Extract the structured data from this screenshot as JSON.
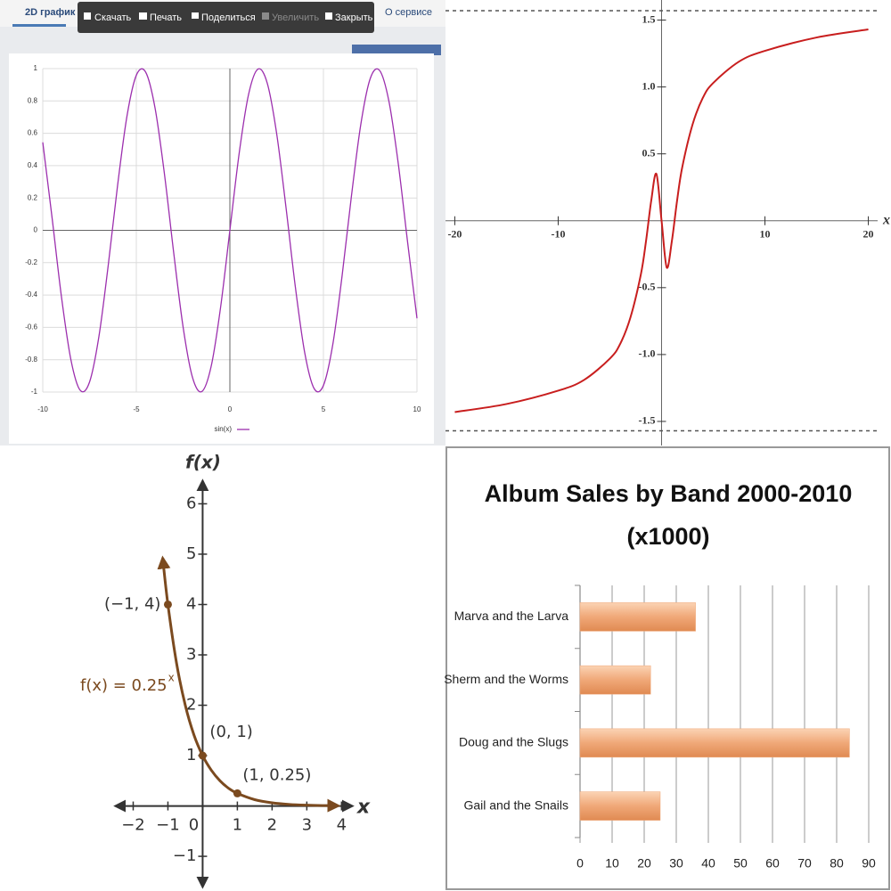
{
  "ui": {
    "tabs": [
      "2D график",
      "О сервисе"
    ],
    "toolbar": [
      "Скачать",
      "Печать",
      "Поделиться",
      "Увеличить",
      "Закрыть"
    ]
  },
  "chart_data": [
    {
      "type": "line",
      "x": [
        -10,
        -9.5,
        -9,
        -8.5,
        -8,
        -7.5,
        -7,
        -6.5,
        -6,
        -5.5,
        -5,
        -4.5,
        -4,
        -3.5,
        -3,
        -2.5,
        -2,
        -1.5,
        -1,
        -0.5,
        0,
        0.5,
        1,
        1.5,
        2,
        2.5,
        3,
        3.5,
        4,
        4.5,
        5,
        5.5,
        6,
        6.5,
        7,
        7.5,
        8,
        8.5,
        9,
        9.5,
        10
      ],
      "series": [
        {
          "name": "sin(x)",
          "color": "#9c2fae",
          "values": [
            0.544,
            0.075,
            -0.412,
            -0.798,
            -0.989,
            -0.938,
            -0.657,
            -0.215,
            0.279,
            0.706,
            0.959,
            0.978,
            0.757,
            0.351,
            -0.141,
            -0.598,
            -0.909,
            -0.997,
            -0.841,
            -0.479,
            0,
            0.479,
            0.841,
            0.997,
            0.909,
            0.598,
            0.141,
            -0.351,
            -0.757,
            -0.978,
            -0.959,
            -0.706,
            -0.279,
            0.215,
            0.657,
            0.938,
            0.989,
            0.798,
            0.412,
            -0.075,
            -0.544
          ]
        }
      ],
      "xlim": [
        -10,
        10
      ],
      "ylim": [
        -1,
        1
      ],
      "xticks": [
        -10,
        -5,
        0,
        5,
        10
      ],
      "yticks": [
        -1,
        -0.8,
        -0.6,
        -0.4,
        -0.2,
        0,
        0.2,
        0.4,
        0.6,
        0.8,
        1
      ],
      "grid": true,
      "legend": "bottom"
    },
    {
      "type": "line",
      "xlabel": "x",
      "x": [
        -20,
        -15,
        -10,
        -7.5,
        -5,
        -4,
        -3,
        -2,
        -1.5,
        -1,
        -0.5,
        0,
        0.5,
        1,
        1.5,
        2,
        3,
        4,
        5,
        7.5,
        10,
        15,
        20
      ],
      "series": [
        {
          "color": "#c81e1e",
          "values": [
            -1.43,
            -1.37,
            -1.27,
            -1.19,
            -1.03,
            -0.92,
            -0.72,
            -0.4,
            -0.15,
            0.15,
            0.35,
            0,
            -0.35,
            -0.15,
            0.15,
            0.4,
            0.72,
            0.92,
            1.03,
            1.19,
            1.27,
            1.37,
            1.43
          ]
        }
      ],
      "xlim": [
        -20.9,
        20.9
      ],
      "ylim": [
        -1.68,
        1.65
      ],
      "xticks": [
        -20,
        -10,
        10,
        20
      ],
      "yticks": [
        {
          "value": 1.5,
          "label": "1.5"
        },
        {
          "value": 1,
          "label": "1.0"
        },
        0.5,
        -0.5,
        {
          "value": -1,
          "label": "-1.0"
        },
        -1.5
      ],
      "hlines": [
        1.57,
        -1.57
      ],
      "grid": false
    },
    {
      "type": "line",
      "xlabel": "x",
      "ylabel": "f(x)",
      "annotation": "f(x) = 0.25",
      "annotation_exponent": "x",
      "x": [
        -1.15,
        -1,
        -0.75,
        -0.5,
        -0.25,
        0,
        0.25,
        0.5,
        0.75,
        1,
        1.5,
        2,
        2.5,
        3,
        3.5,
        3.9
      ],
      "series": [
        {
          "color": "#7b4a1f",
          "values": [
            4.92,
            4,
            2.83,
            2,
            1.41,
            1,
            0.71,
            0.5,
            0.35,
            0.25,
            0.125,
            0.0625,
            0.031,
            0.016,
            0.008,
            0.004
          ]
        }
      ],
      "points": {
        "x": [
          -1,
          0,
          1
        ],
        "values": [
          4,
          1,
          0.25
        ],
        "labels": [
          "(−1, 4)",
          "(0, 1)",
          "(1, 0.25)"
        ]
      },
      "xlim": [
        -2.5,
        4.3
      ],
      "ylim": [
        -1.6,
        6.45
      ],
      "xticks": [
        {
          "value": -2,
          "label": "−2"
        },
        {
          "value": -1,
          "label": "−1"
        },
        0,
        1,
        2,
        3,
        4
      ],
      "yticks": [
        {
          "value": -1,
          "label": "−1"
        },
        1,
        2,
        3,
        4,
        5,
        6
      ],
      "grid": false
    },
    {
      "type": "bar",
      "orientation": "horizontal",
      "title": "Album Sales by Band 2000-2010",
      "subtitle": "(x1000)",
      "categories": [
        "Marva and the Larva",
        "Sherm and the Worms",
        "Doug and the Slugs",
        "Gail and the Snails"
      ],
      "values": [
        36,
        22,
        84,
        25
      ],
      "color": "#f0a878",
      "xlim": [
        0,
        90
      ],
      "xticks": [
        0,
        10,
        20,
        30,
        40,
        50,
        60,
        70,
        80,
        90
      ],
      "grid": true
    }
  ]
}
